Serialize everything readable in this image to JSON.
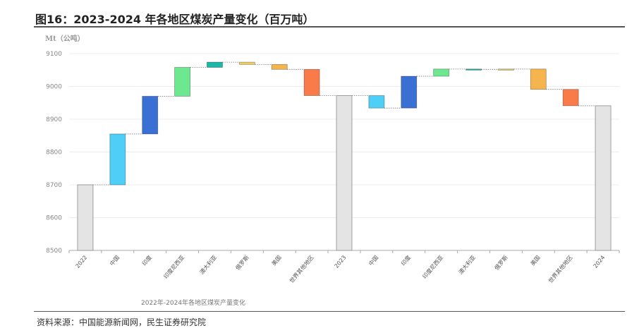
{
  "figure": {
    "title": "图16：2023-2024 年各地区煤炭产量变化（百万吨）",
    "source": "资料来源：中国能源新闻网，民生证券研究院"
  },
  "chart_data": {
    "type": "waterfall",
    "title": "",
    "caption": "2022年-2024年各地区煤炭产量变化",
    "ylabel": "Mt（公吨）",
    "ylim": [
      8500,
      9100
    ],
    "yticks": [
      8500,
      8600,
      8700,
      8800,
      8900,
      9000,
      9100
    ],
    "grid": true,
    "categories": [
      "2022",
      "中国",
      "印度",
      "印度尼西亚",
      "澳大利亚",
      "俄罗斯",
      "美国",
      "世界其他地区",
      "2023",
      "中国",
      "印度",
      "印度尼西亚",
      "澳大利亚",
      "俄罗斯",
      "美国",
      "世界其他地区",
      "2024"
    ],
    "steps": [
      {
        "label": "2022",
        "kind": "total",
        "value": 8700
      },
      {
        "label": "中国",
        "kind": "change",
        "value": 155
      },
      {
        "label": "印度",
        "kind": "change",
        "value": 115
      },
      {
        "label": "印度尼西亚",
        "kind": "change",
        "value": 88
      },
      {
        "label": "澳大利亚",
        "kind": "change",
        "value": 16
      },
      {
        "label": "俄罗斯",
        "kind": "change",
        "value": -7
      },
      {
        "label": "美国",
        "kind": "change",
        "value": -15
      },
      {
        "label": "世界其他地区",
        "kind": "change",
        "value": -80
      },
      {
        "label": "2023",
        "kind": "total",
        "value": 8972
      },
      {
        "label": "中国",
        "kind": "change",
        "value": -38
      },
      {
        "label": "印度",
        "kind": "change",
        "value": 97
      },
      {
        "label": "印度尼西亚",
        "kind": "change",
        "value": 22
      },
      {
        "label": "澳大利亚",
        "kind": "change",
        "value": -1
      },
      {
        "label": "俄罗斯",
        "kind": "change",
        "value": 1
      },
      {
        "label": "美国",
        "kind": "change",
        "value": -62
      },
      {
        "label": "世界其他地区",
        "kind": "change",
        "value": -50
      },
      {
        "label": "2024",
        "kind": "total",
        "value": 8941
      }
    ],
    "colors": {
      "total": "#e4e4e4",
      "中国": "#4dcff7",
      "印度": "#3a6fd4",
      "印度尼西亚": "#6ee890",
      "澳大利亚": "#19b8a8",
      "俄罗斯": "#f2cf62",
      "美国": "#f6b44c",
      "世界其他地区": "#f97b4a"
    }
  }
}
